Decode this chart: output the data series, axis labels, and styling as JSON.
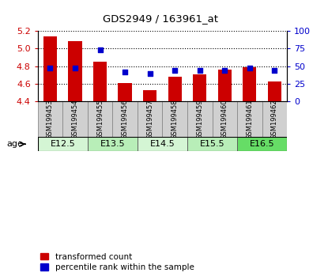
{
  "title": "GDS2949 / 163961_at",
  "samples": [
    "GSM199453",
    "GSM199454",
    "GSM199455",
    "GSM199456",
    "GSM199457",
    "GSM199458",
    "GSM199459",
    "GSM199460",
    "GSM199461",
    "GSM199462"
  ],
  "transformed_count": [
    5.14,
    5.08,
    4.85,
    4.61,
    4.53,
    4.68,
    4.71,
    4.76,
    4.79,
    4.63
  ],
  "percentile_rank": [
    47,
    47,
    73,
    42,
    40,
    44,
    44,
    44,
    47,
    44
  ],
  "ylim_left": [
    4.4,
    5.2
  ],
  "ylim_right": [
    0,
    100
  ],
  "yticks_left": [
    4.4,
    4.6,
    4.8,
    5.0,
    5.2
  ],
  "yticks_right": [
    0,
    25,
    50,
    75,
    100
  ],
  "age_groups": [
    {
      "label": "E12.5",
      "indices": [
        0,
        1
      ],
      "color": "#d4f5d4"
    },
    {
      "label": "E13.5",
      "indices": [
        2,
        3
      ],
      "color": "#b8eeb8"
    },
    {
      "label": "E14.5",
      "indices": [
        4,
        5
      ],
      "color": "#d4f5d4"
    },
    {
      "label": "E15.5",
      "indices": [
        6,
        7
      ],
      "color": "#b8eeb8"
    },
    {
      "label": "E16.5",
      "indices": [
        8,
        9
      ],
      "color": "#66dd66"
    }
  ],
  "bar_color": "#cc0000",
  "dot_color": "#0000cc",
  "bar_width": 0.55,
  "bar_bottom": 4.4,
  "grid_color": "#000000",
  "tick_label_color_left": "#cc0000",
  "tick_label_color_right": "#0000cc",
  "legend_items": [
    {
      "label": "transformed count",
      "color": "#cc0000"
    },
    {
      "label": "percentile rank within the sample",
      "color": "#0000cc"
    }
  ],
  "age_label": "age",
  "sample_box_color": "#d0d0d0",
  "sample_box_edge_color": "#888888"
}
